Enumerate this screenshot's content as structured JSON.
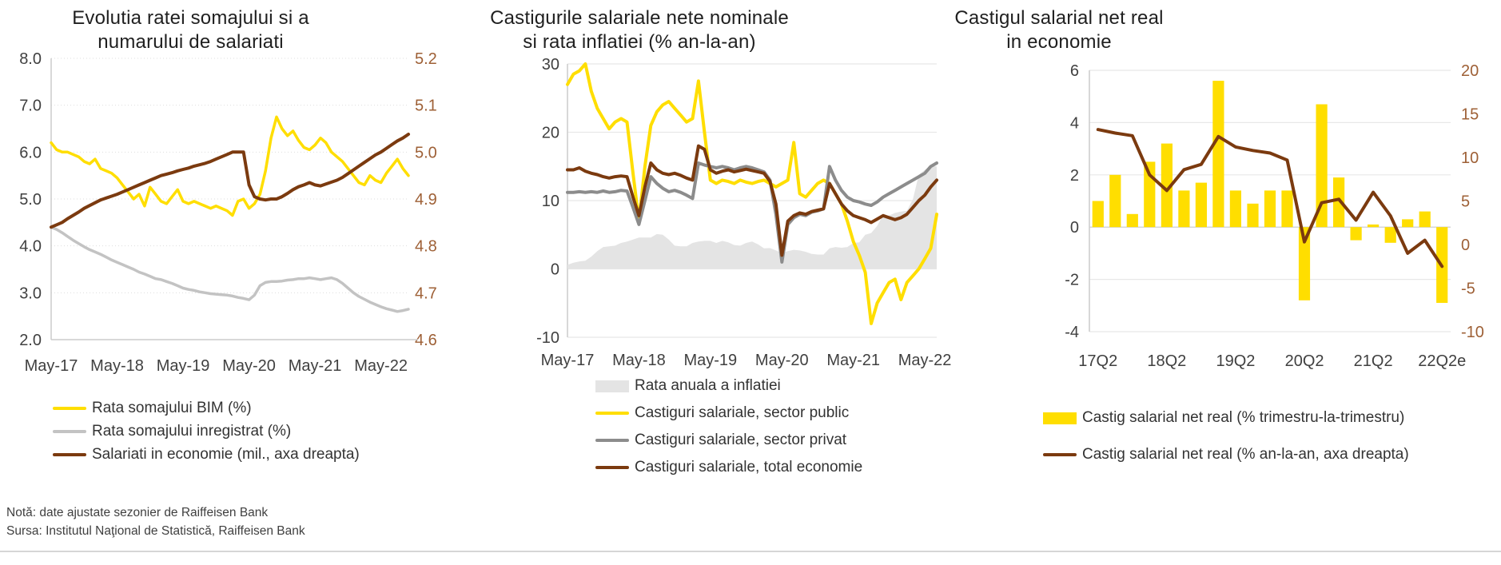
{
  "colors": {
    "yellow": "#FFDE00",
    "brown": "#7B3A0F",
    "gray_light": "#C3C3C3",
    "gray_dark": "#8C8C8C",
    "area_gray": "#E4E4E4",
    "axis_text": "#404040",
    "right_axis_text": "#9E6036",
    "grid": "#E8E8E8",
    "title_text": "#1F1F1F"
  },
  "footer": {
    "note": "Notă: date ajustate sezonier de Raiffeisen Bank",
    "source": "Sursa: Institutul Naţional de Statistică, Raiffeisen Bank"
  },
  "chart_data": [
    {
      "type": "line",
      "title": "Evolutia ratei somajului si a numarului de salariati",
      "title_lines": [
        "Evolutia ratei somajului si a",
        "numarului de salariati"
      ],
      "x_ticks": [
        "May-17",
        "May-18",
        "May-19",
        "May-20",
        "May-21",
        "May-22"
      ],
      "x_frequency": "monthly",
      "grid": "dotted",
      "legend_position": "bottom-left",
      "y_left": {
        "min": 2.0,
        "max": 8.0,
        "ticks": [
          "8.0",
          "7.0",
          "6.0",
          "5.0",
          "4.0",
          "3.0",
          "2.0"
        ]
      },
      "y_right": {
        "min": 4.6,
        "max": 5.2,
        "ticks": [
          "5.2",
          "5.1",
          "5.0",
          "4.9",
          "4.8",
          "4.7",
          "4.6"
        ]
      },
      "series": [
        {
          "name": "Rata somajului BIM (%)",
          "kind": "line",
          "axis": "left",
          "color_key": "yellow",
          "values": [
            6.2,
            6.05,
            6.0,
            6.0,
            5.95,
            5.9,
            5.8,
            5.75,
            5.85,
            5.65,
            5.6,
            5.55,
            5.45,
            5.3,
            5.15,
            5.0,
            5.1,
            4.85,
            5.25,
            5.1,
            4.95,
            4.9,
            5.05,
            5.2,
            4.95,
            4.9,
            4.95,
            4.9,
            4.85,
            4.8,
            4.85,
            4.8,
            4.75,
            4.65,
            4.95,
            5.0,
            4.8,
            4.9,
            5.1,
            5.6,
            6.3,
            6.75,
            6.5,
            6.35,
            6.45,
            6.25,
            6.1,
            6.05,
            6.15,
            6.3,
            6.2,
            6.0,
            5.9,
            5.8,
            5.65,
            5.5,
            5.35,
            5.3,
            5.5,
            5.4,
            5.35,
            5.55,
            5.7,
            5.85,
            5.65,
            5.5
          ]
        },
        {
          "name": "Rata somajului inregistrat (%)",
          "kind": "line",
          "axis": "left",
          "color_key": "gray_light",
          "values": [
            4.4,
            4.35,
            4.28,
            4.2,
            4.12,
            4.05,
            3.98,
            3.92,
            3.87,
            3.82,
            3.76,
            3.7,
            3.65,
            3.6,
            3.55,
            3.5,
            3.44,
            3.4,
            3.35,
            3.3,
            3.28,
            3.24,
            3.2,
            3.15,
            3.1,
            3.07,
            3.05,
            3.02,
            3.0,
            2.98,
            2.97,
            2.96,
            2.95,
            2.93,
            2.9,
            2.88,
            2.85,
            2.95,
            3.15,
            3.22,
            3.24,
            3.24,
            3.25,
            3.27,
            3.28,
            3.3,
            3.3,
            3.32,
            3.3,
            3.28,
            3.3,
            3.32,
            3.28,
            3.2,
            3.1,
            3.0,
            2.92,
            2.86,
            2.8,
            2.75,
            2.7,
            2.66,
            2.63,
            2.6,
            2.62,
            2.65
          ]
        },
        {
          "name": "Salariati in economie (mil., axa dreapta)",
          "kind": "line",
          "axis": "right",
          "color_key": "brown",
          "values": [
            4.84,
            4.845,
            4.85,
            4.858,
            4.865,
            4.872,
            4.88,
            4.886,
            4.892,
            4.898,
            4.902,
            4.906,
            4.91,
            4.915,
            4.92,
            4.925,
            4.93,
            4.935,
            4.94,
            4.945,
            4.95,
            4.953,
            4.956,
            4.96,
            4.963,
            4.966,
            4.97,
            4.973,
            4.976,
            4.98,
            4.985,
            4.99,
            4.995,
            5.0,
            5.0,
            5.0,
            4.93,
            4.905,
            4.9,
            4.898,
            4.9,
            4.9,
            4.905,
            4.912,
            4.92,
            4.926,
            4.93,
            4.935,
            4.93,
            4.928,
            4.932,
            4.936,
            4.94,
            4.946,
            4.954,
            4.962,
            4.97,
            4.978,
            4.986,
            4.994,
            5.0,
            5.008,
            5.016,
            5.024,
            5.03,
            5.038
          ]
        }
      ]
    },
    {
      "type": "area-line",
      "title": "Castigurile salariale nete nominale si rata inflatiei (% an-la-an)",
      "title_lines": [
        "Castigurile salariale nete nominale",
        "si rata inflatiei (% an-la-an)"
      ],
      "x_ticks": [
        "May-17",
        "May-18",
        "May-19",
        "May-20",
        "May-21",
        "May-22"
      ],
      "x_frequency": "monthly",
      "grid": "solid",
      "legend_position": "bottom-left",
      "y_left": {
        "min": -10,
        "max": 30,
        "ticks": [
          "30",
          "20",
          "10",
          "0",
          "-10"
        ]
      },
      "series": [
        {
          "name": "Rata anuala a inflatiei",
          "kind": "area",
          "axis": "left",
          "color_key": "area_gray",
          "values": [
            0.6,
            0.9,
            1.1,
            1.2,
            1.8,
            2.6,
            3.2,
            3.3,
            3.4,
            3.8,
            4.0,
            4.3,
            4.6,
            4.6,
            4.6,
            5.1,
            5.0,
            4.3,
            3.4,
            3.3,
            3.3,
            3.8,
            4.0,
            4.1,
            4.1,
            3.8,
            4.1,
            3.9,
            3.5,
            3.4,
            3.8,
            4.0,
            3.6,
            3.0,
            3.05,
            2.7,
            2.3,
            2.6,
            2.8,
            2.7,
            2.5,
            2.2,
            2.1,
            2.1,
            3.0,
            3.2,
            3.1,
            3.2,
            3.8,
            3.9,
            5.0,
            5.25,
            6.3,
            7.9,
            7.8,
            8.2,
            8.4,
            8.5,
            10.2,
            13.8,
            14.5,
            15.1,
            15.0
          ]
        },
        {
          "name": "Castiguri salariale, sector public",
          "kind": "line",
          "axis": "left",
          "color_key": "yellow",
          "values": [
            27,
            28.5,
            29,
            30,
            26,
            23.5,
            22,
            20.5,
            21.5,
            22,
            21.5,
            14,
            7,
            15,
            21,
            23,
            24,
            24.5,
            23.5,
            22.5,
            21.5,
            22,
            27.5,
            20,
            13,
            12.5,
            13,
            12.8,
            12.5,
            13,
            12.7,
            12.5,
            12.8,
            13,
            12.5,
            12,
            12.5,
            13,
            18.5,
            11,
            10.5,
            11.5,
            12.5,
            13,
            12.5,
            11,
            9.5,
            7,
            4,
            2,
            -0.5,
            -8,
            -5,
            -3.5,
            -2,
            -1.5,
            -4.5,
            -2,
            -1,
            0,
            1.5,
            3,
            8
          ]
        },
        {
          "name": "Castiguri salariale, sector privat",
          "kind": "line",
          "axis": "left",
          "color_key": "gray_dark",
          "values": [
            11.2,
            11.2,
            11.3,
            11.2,
            11.3,
            11.2,
            11.4,
            11.2,
            11.3,
            11.5,
            11.4,
            9,
            6.5,
            10,
            13.5,
            12.5,
            11.8,
            11.3,
            11.5,
            11.2,
            10.8,
            10.3,
            15.5,
            15.2,
            15,
            14.8,
            15,
            14.8,
            14.5,
            14.8,
            15,
            14.8,
            14.5,
            14.2,
            13,
            8,
            1,
            6.5,
            7.5,
            8,
            7.8,
            8.3,
            8.5,
            8.8,
            15,
            13,
            11.5,
            10.5,
            10,
            9.8,
            9.5,
            9.3,
            9.8,
            10.5,
            11,
            11.5,
            12,
            12.5,
            13,
            13.5,
            14,
            15,
            15.5
          ]
        },
        {
          "name": "Castiguri salariale, total economie",
          "kind": "line",
          "axis": "left",
          "color_key": "brown",
          "values": [
            14.5,
            14.5,
            14.8,
            14.3,
            14,
            13.8,
            13.5,
            13.3,
            13.5,
            13.6,
            13.5,
            10.5,
            7.8,
            12,
            15.5,
            14.5,
            14,
            13.8,
            14,
            13.7,
            13.3,
            13,
            18,
            17.5,
            14.5,
            14,
            14.3,
            14.5,
            14.2,
            14.4,
            14.6,
            14.4,
            14.2,
            14,
            12.8,
            9.5,
            2,
            7,
            7.8,
            8.2,
            8,
            8.4,
            8.6,
            8.8,
            12.5,
            11,
            9.5,
            8.5,
            7.8,
            7.5,
            7.2,
            6.8,
            7.3,
            7.8,
            7.5,
            7.2,
            7.5,
            8,
            9,
            10,
            10.8,
            12,
            13
          ]
        }
      ]
    },
    {
      "type": "bar-line",
      "title": "Castigul salarial net real in economie",
      "title_lines": [
        "Castigul salarial net real",
        "in economie"
      ],
      "x_ticks": [
        "17Q2",
        "18Q2",
        "19Q2",
        "20Q2",
        "21Q2",
        "22Q2e"
      ],
      "x_frequency": "quarterly",
      "grid": "solid",
      "legend_position": "bottom-left",
      "y_left": {
        "min": -4,
        "max": 6,
        "ticks": [
          "6",
          "4",
          "2",
          "0",
          "-2",
          "-4"
        ]
      },
      "y_right": {
        "min": -10,
        "max": 20,
        "ticks": [
          "20",
          "15",
          "10",
          "5",
          "0",
          "-5",
          "-10"
        ]
      },
      "categories": [
        "17Q2",
        "17Q3",
        "17Q4",
        "18Q1",
        "18Q2",
        "18Q3",
        "18Q4",
        "19Q1",
        "19Q2",
        "19Q3",
        "19Q4",
        "20Q1",
        "20Q2",
        "20Q3",
        "20Q4",
        "21Q1",
        "21Q2",
        "21Q3",
        "21Q4",
        "22Q1",
        "22Q2e"
      ],
      "series": [
        {
          "name": "Castig salarial net real (% trimestru-la-trimestru)",
          "kind": "bar",
          "axis": "left",
          "color_key": "yellow",
          "values": [
            1.0,
            2.0,
            0.5,
            2.5,
            3.2,
            1.4,
            1.7,
            5.6,
            1.4,
            0.9,
            1.4,
            1.4,
            -2.8,
            4.7,
            1.9,
            -0.5,
            0.1,
            -0.6,
            0.3,
            0.6,
            -2.9
          ]
        },
        {
          "name": "Castig salarial net real (% an-la-an, axa dreapta)",
          "kind": "line",
          "axis": "right",
          "color_key": "brown",
          "values": [
            13.2,
            12.8,
            12.5,
            8.0,
            6.2,
            8.6,
            9.2,
            12.4,
            11.2,
            10.8,
            10.5,
            9.7,
            0.3,
            4.8,
            5.2,
            2.8,
            6.0,
            3.3,
            -1.0,
            0.5,
            -2.5
          ]
        }
      ]
    }
  ]
}
